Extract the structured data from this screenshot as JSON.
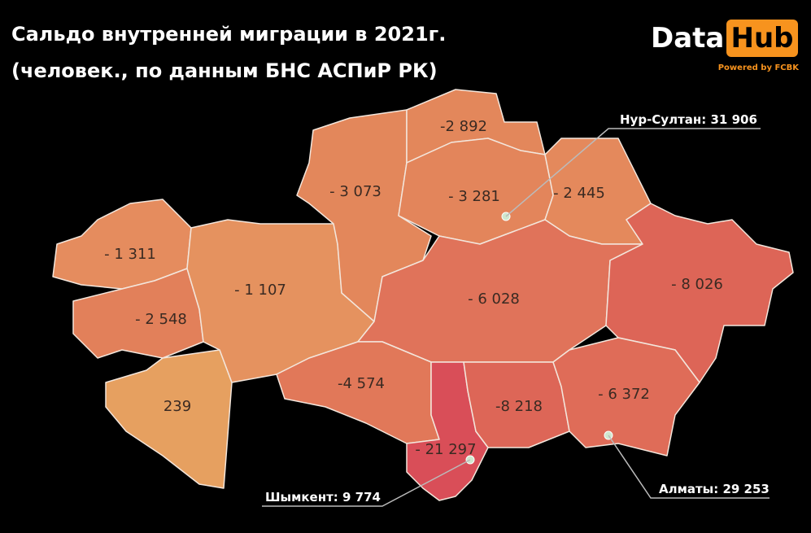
{
  "header": {
    "title": "Сальдо внутренней миграции в 2021г.",
    "subtitle": "(человек., по данным БНС АСПиР РК)"
  },
  "logo": {
    "text": "Data",
    "highlight": "Hub",
    "tagline": "Powered by FCBK"
  },
  "regions": [
    {
      "label": "- 1 311"
    },
    {
      "label": "- 2 548"
    },
    {
      "label": "239"
    },
    {
      "label": "- 1 107"
    },
    {
      "label": "- 3 073"
    },
    {
      "label": "-2 892"
    },
    {
      "label": "- 3 281"
    },
    {
      "label": "- 2 445"
    },
    {
      "label": "- 6 028"
    },
    {
      "label": "- 8 026"
    },
    {
      "label": "-4 574"
    },
    {
      "label": "- 21 297"
    },
    {
      "label": "-8 218"
    },
    {
      "label": "- 6 372"
    }
  ],
  "cities": [
    {
      "label": "Нур-Султан: 31 906"
    },
    {
      "label": "Шымкент: 9 774"
    },
    {
      "label": "Алматы: 29 253"
    }
  ]
}
